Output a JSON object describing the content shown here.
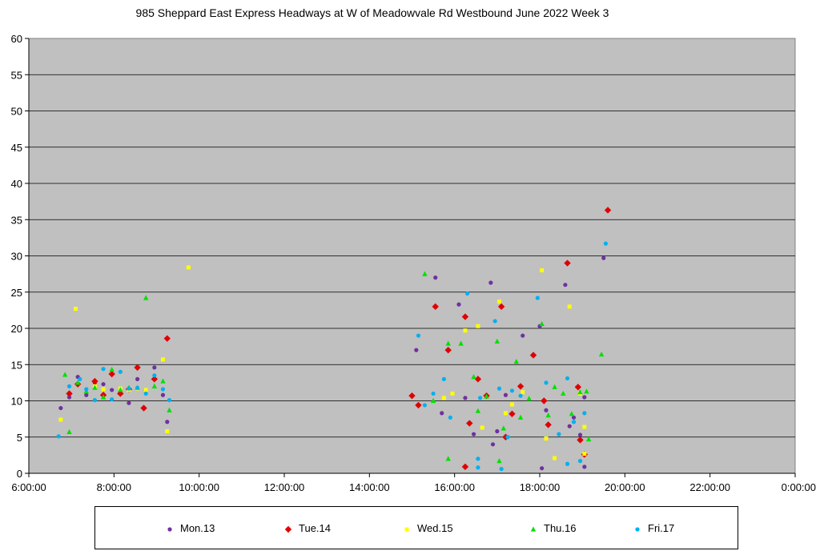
{
  "chart_data": {
    "type": "scatter",
    "title": "985 Sheppard East Express Headways at W of Meadowvale Rd Westbound June 2022  Week 3",
    "xlabel": "",
    "ylabel": "",
    "x_unit": "hours",
    "xlim": [
      6,
      24
    ],
    "ylim": [
      0,
      60
    ],
    "x_tick_values": [
      6,
      8,
      10,
      12,
      14,
      16,
      18,
      20,
      22,
      24
    ],
    "x_tick_labels": [
      "6:00:00",
      "8:00:00",
      "10:00:00",
      "12:00:00",
      "14:00:00",
      "16:00:00",
      "18:00:00",
      "20:00:00",
      "22:00:00",
      "0:00:00"
    ],
    "y_ticks": [
      0,
      5,
      10,
      15,
      20,
      25,
      30,
      35,
      40,
      45,
      50,
      55,
      60
    ],
    "grid": "horizontal",
    "legend_position": "bottom",
    "series": [
      {
        "name": "Mon.13",
        "color": "#7030a0",
        "marker": "circle",
        "points": [
          [
            6.75,
            9.0
          ],
          [
            6.95,
            10.5
          ],
          [
            7.15,
            13.3
          ],
          [
            7.35,
            10.8
          ],
          [
            7.55,
            12.5
          ],
          [
            7.75,
            12.3
          ],
          [
            7.95,
            11.5
          ],
          [
            8.15,
            11.2
          ],
          [
            8.35,
            9.7
          ],
          [
            8.55,
            13.0
          ],
          [
            8.75,
            11.5
          ],
          [
            8.95,
            14.6
          ],
          [
            9.15,
            10.8
          ],
          [
            9.25,
            7.1
          ],
          [
            15.1,
            17.0
          ],
          [
            15.55,
            27.0
          ],
          [
            15.7,
            8.3
          ],
          [
            16.1,
            23.3
          ],
          [
            16.25,
            10.4
          ],
          [
            16.45,
            5.4
          ],
          [
            16.85,
            26.3
          ],
          [
            16.9,
            4.0
          ],
          [
            17.0,
            5.8
          ],
          [
            17.2,
            10.8
          ],
          [
            17.6,
            19.0
          ],
          [
            18.0,
            20.3
          ],
          [
            18.05,
            0.7
          ],
          [
            18.15,
            8.7
          ],
          [
            18.6,
            26.0
          ],
          [
            18.7,
            6.5
          ],
          [
            18.8,
            7.7
          ],
          [
            18.95,
            5.3
          ],
          [
            19.05,
            0.9
          ],
          [
            19.05,
            10.5
          ],
          [
            19.5,
            29.7
          ]
        ]
      },
      {
        "name": "Tue.14",
        "color": "#e00000",
        "marker": "diamond",
        "points": [
          [
            6.95,
            11.0
          ],
          [
            7.15,
            12.3
          ],
          [
            7.55,
            12.7
          ],
          [
            7.75,
            10.8
          ],
          [
            7.95,
            13.7
          ],
          [
            8.15,
            11.0
          ],
          [
            8.35,
            11.6
          ],
          [
            8.55,
            14.6
          ],
          [
            8.7,
            9.0
          ],
          [
            8.95,
            13.0
          ],
          [
            9.25,
            18.6
          ],
          [
            15.0,
            10.7
          ],
          [
            15.15,
            9.4
          ],
          [
            15.55,
            23.0
          ],
          [
            15.85,
            17.0
          ],
          [
            16.25,
            21.6
          ],
          [
            16.25,
            0.9
          ],
          [
            16.35,
            6.9
          ],
          [
            16.55,
            13.0
          ],
          [
            16.75,
            10.7
          ],
          [
            17.1,
            23.0
          ],
          [
            17.2,
            5.0
          ],
          [
            17.35,
            8.2
          ],
          [
            17.55,
            12.0
          ],
          [
            17.85,
            16.3
          ],
          [
            18.1,
            10.0
          ],
          [
            18.2,
            6.7
          ],
          [
            18.65,
            29.0
          ],
          [
            18.9,
            11.9
          ],
          [
            18.95,
            4.6
          ],
          [
            19.05,
            2.6
          ],
          [
            19.6,
            36.3
          ]
        ]
      },
      {
        "name": "Wed.15",
        "color": "#ffff00",
        "marker": "square",
        "points": [
          [
            6.75,
            7.4
          ],
          [
            7.1,
            22.7
          ],
          [
            7.55,
            12.0
          ],
          [
            7.75,
            11.6
          ],
          [
            8.15,
            11.7
          ],
          [
            8.35,
            11.5
          ],
          [
            8.55,
            11.7
          ],
          [
            8.75,
            11.5
          ],
          [
            9.15,
            15.7
          ],
          [
            9.25,
            5.8
          ],
          [
            9.75,
            28.4
          ],
          [
            15.75,
            10.4
          ],
          [
            15.95,
            11.0
          ],
          [
            16.25,
            19.7
          ],
          [
            16.55,
            20.3
          ],
          [
            16.65,
            6.3
          ],
          [
            17.05,
            23.7
          ],
          [
            17.2,
            8.3
          ],
          [
            17.35,
            9.5
          ],
          [
            17.6,
            11.2
          ],
          [
            18.05,
            28.0
          ],
          [
            18.15,
            4.8
          ],
          [
            18.35,
            2.1
          ],
          [
            18.7,
            23.0
          ],
          [
            18.95,
            11.0
          ],
          [
            19.05,
            6.4
          ],
          [
            19.05,
            2.7
          ]
        ]
      },
      {
        "name": "Thu.16",
        "color": "#00e000",
        "marker": "triangle",
        "points": [
          [
            6.85,
            13.6
          ],
          [
            6.95,
            5.7
          ],
          [
            7.15,
            12.5
          ],
          [
            7.35,
            11.3
          ],
          [
            7.55,
            11.8
          ],
          [
            7.75,
            10.5
          ],
          [
            7.95,
            14.3
          ],
          [
            8.15,
            11.5
          ],
          [
            8.35,
            11.8
          ],
          [
            8.55,
            11.8
          ],
          [
            8.75,
            24.2
          ],
          [
            8.95,
            12.0
          ],
          [
            9.15,
            12.7
          ],
          [
            9.3,
            8.7
          ],
          [
            15.3,
            27.5
          ],
          [
            15.5,
            10.0
          ],
          [
            15.85,
            17.9
          ],
          [
            15.85,
            2.0
          ],
          [
            16.15,
            17.9
          ],
          [
            16.45,
            13.3
          ],
          [
            16.55,
            8.6
          ],
          [
            16.75,
            10.6
          ],
          [
            17.0,
            18.2
          ],
          [
            17.05,
            1.7
          ],
          [
            17.15,
            6.2
          ],
          [
            17.45,
            15.4
          ],
          [
            17.55,
            7.7
          ],
          [
            17.75,
            10.3
          ],
          [
            18.05,
            20.6
          ],
          [
            18.2,
            8.0
          ],
          [
            18.35,
            11.9
          ],
          [
            18.55,
            11.0
          ],
          [
            18.75,
            8.2
          ],
          [
            18.95,
            11.2
          ],
          [
            19.1,
            11.3
          ],
          [
            19.15,
            4.7
          ],
          [
            19.45,
            16.4
          ]
        ]
      },
      {
        "name": "Fri.17",
        "color": "#00b0f0",
        "marker": "circle",
        "points": [
          [
            6.7,
            5.1
          ],
          [
            6.95,
            12.0
          ],
          [
            7.2,
            13.0
          ],
          [
            7.35,
            11.6
          ],
          [
            7.55,
            10.1
          ],
          [
            7.75,
            14.4
          ],
          [
            7.95,
            10.2
          ],
          [
            8.15,
            14.0
          ],
          [
            8.35,
            11.7
          ],
          [
            8.55,
            11.8
          ],
          [
            8.75,
            11.0
          ],
          [
            8.95,
            13.5
          ],
          [
            9.15,
            11.6
          ],
          [
            9.3,
            10.1
          ],
          [
            15.15,
            19.0
          ],
          [
            15.3,
            9.4
          ],
          [
            15.5,
            11.0
          ],
          [
            15.75,
            13.0
          ],
          [
            15.9,
            7.7
          ],
          [
            16.3,
            24.8
          ],
          [
            16.55,
            2.0
          ],
          [
            16.55,
            0.8
          ],
          [
            16.6,
            10.4
          ],
          [
            16.95,
            21.0
          ],
          [
            17.05,
            11.7
          ],
          [
            17.1,
            0.6
          ],
          [
            17.25,
            5.0
          ],
          [
            17.35,
            11.4
          ],
          [
            17.55,
            10.7
          ],
          [
            17.95,
            24.2
          ],
          [
            18.15,
            12.5
          ],
          [
            18.45,
            5.4
          ],
          [
            18.65,
            13.1
          ],
          [
            18.65,
            1.3
          ],
          [
            18.8,
            7.1
          ],
          [
            18.95,
            1.7
          ],
          [
            19.05,
            8.3
          ],
          [
            19.55,
            31.7
          ]
        ]
      }
    ]
  }
}
